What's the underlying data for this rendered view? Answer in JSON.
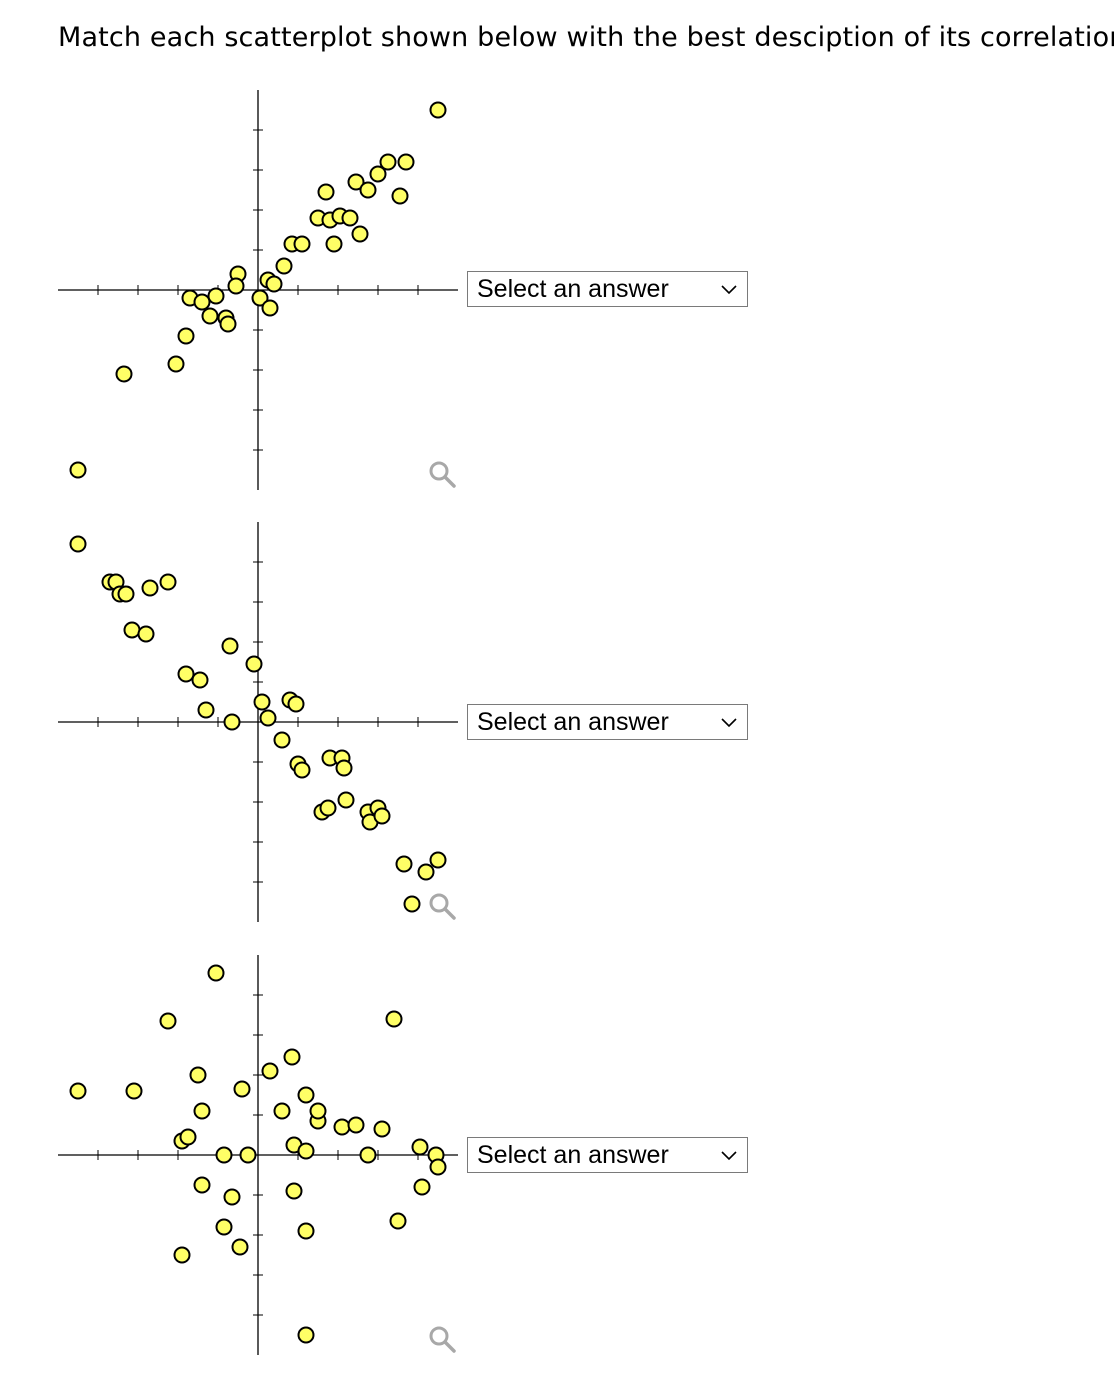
{
  "question": {
    "text": "Match each scatterplot shown below with the best desciption of its correlation."
  },
  "answer_select": {
    "placeholder": "Select an answer"
  },
  "icons": {
    "zoom": "magnifier-icon",
    "dropdown": "chevron-down-icon"
  },
  "colors": {
    "point_fill": "#ffff66",
    "point_stroke": "#000000",
    "axis": "#000000",
    "zoom_icon": "#a8a8a8"
  },
  "chart_data": [
    {
      "type": "scatter",
      "title": "",
      "xlabel": "",
      "ylabel": "",
      "xlim": [
        -10,
        10
      ],
      "ylim": [
        -10,
        10
      ],
      "grid": false,
      "axes_through_origin": true,
      "ticks_every": 2,
      "points": [
        [
          -9.0,
          -9.0
        ],
        [
          -6.7,
          -4.2
        ],
        [
          -4.1,
          -3.7
        ],
        [
          -3.6,
          -2.3
        ],
        [
          -3.4,
          -0.4
        ],
        [
          -2.8,
          -0.6
        ],
        [
          -2.4,
          -1.3
        ],
        [
          -2.1,
          -0.3
        ],
        [
          -1.6,
          -1.4
        ],
        [
          -1.5,
          -1.7
        ],
        [
          -1.0,
          0.8
        ],
        [
          -1.1,
          0.2
        ],
        [
          0.1,
          -0.4
        ],
        [
          0.6,
          -0.9
        ],
        [
          0.5,
          0.5
        ],
        [
          0.8,
          0.3
        ],
        [
          1.3,
          1.2
        ],
        [
          1.7,
          2.3
        ],
        [
          2.2,
          2.3
        ],
        [
          3.0,
          3.6
        ],
        [
          3.4,
          4.9
        ],
        [
          3.6,
          3.5
        ],
        [
          3.8,
          2.3
        ],
        [
          4.1,
          3.7
        ],
        [
          4.6,
          3.6
        ],
        [
          5.1,
          2.8
        ],
        [
          4.9,
          5.4
        ],
        [
          5.5,
          5.0
        ],
        [
          6.0,
          5.8
        ],
        [
          6.5,
          6.4
        ],
        [
          7.1,
          4.7
        ],
        [
          7.4,
          6.4
        ],
        [
          9.0,
          9.0
        ]
      ]
    },
    {
      "type": "scatter",
      "title": "",
      "xlabel": "",
      "ylabel": "",
      "xlim": [
        -10,
        10
      ],
      "ylim": [
        -10,
        10
      ],
      "grid": false,
      "axes_through_origin": true,
      "ticks_every": 2,
      "points": [
        [
          -9.0,
          8.9
        ],
        [
          -7.4,
          7.0
        ],
        [
          -7.1,
          7.0
        ],
        [
          -6.9,
          6.4
        ],
        [
          -6.6,
          6.4
        ],
        [
          -6.3,
          4.6
        ],
        [
          -5.6,
          4.4
        ],
        [
          -5.4,
          6.7
        ],
        [
          -4.5,
          7.0
        ],
        [
          -3.6,
          2.4
        ],
        [
          -2.9,
          2.1
        ],
        [
          -2.6,
          0.6
        ],
        [
          -1.4,
          3.8
        ],
        [
          -1.3,
          0.0
        ],
        [
          -0.2,
          2.9
        ],
        [
          0.2,
          1.0
        ],
        [
          0.5,
          0.2
        ],
        [
          1.2,
          -0.9
        ],
        [
          1.6,
          1.1
        ],
        [
          1.9,
          0.9
        ],
        [
          2.0,
          -2.1
        ],
        [
          2.2,
          -2.4
        ],
        [
          3.2,
          -4.5
        ],
        [
          3.5,
          -4.3
        ],
        [
          3.6,
          -1.8
        ],
        [
          4.2,
          -1.8
        ],
        [
          4.3,
          -2.3
        ],
        [
          4.4,
          -3.9
        ],
        [
          5.5,
          -4.5
        ],
        [
          5.6,
          -5.0
        ],
        [
          6.0,
          -4.3
        ],
        [
          6.2,
          -4.7
        ],
        [
          7.3,
          -7.1
        ],
        [
          7.7,
          -9.1
        ],
        [
          8.4,
          -7.5
        ],
        [
          9.0,
          -6.9
        ]
      ]
    },
    {
      "type": "scatter",
      "title": "",
      "xlabel": "",
      "ylabel": "",
      "xlim": [
        -10,
        10
      ],
      "ylim": [
        -10,
        10
      ],
      "grid": false,
      "axes_through_origin": true,
      "ticks_every": 2,
      "points": [
        [
          -9.0,
          3.2
        ],
        [
          -6.2,
          3.2
        ],
        [
          -4.5,
          6.7
        ],
        [
          -3.8,
          -5.0
        ],
        [
          -3.8,
          0.7
        ],
        [
          -3.5,
          0.9
        ],
        [
          -3.0,
          4.0
        ],
        [
          -2.8,
          2.2
        ],
        [
          -2.8,
          -1.5
        ],
        [
          -2.1,
          9.1
        ],
        [
          -1.7,
          0.0
        ],
        [
          -1.7,
          -3.6
        ],
        [
          -1.3,
          -2.1
        ],
        [
          -0.9,
          -4.6
        ],
        [
          -0.8,
          3.3
        ],
        [
          -0.5,
          0.0
        ],
        [
          0.6,
          4.2
        ],
        [
          1.2,
          2.2
        ],
        [
          1.7,
          4.9
        ],
        [
          1.8,
          -1.8
        ],
        [
          1.8,
          0.5
        ],
        [
          2.4,
          0.2
        ],
        [
          2.4,
          -3.8
        ],
        [
          2.4,
          3.0
        ],
        [
          3.0,
          1.7
        ],
        [
          3.0,
          2.2
        ],
        [
          4.2,
          1.4
        ],
        [
          4.9,
          1.5
        ],
        [
          5.5,
          0.0
        ],
        [
          6.2,
          1.3
        ],
        [
          6.8,
          6.8
        ],
        [
          7.0,
          -3.3
        ],
        [
          8.1,
          0.4
        ],
        [
          8.2,
          -1.6
        ],
        [
          8.9,
          0.0
        ],
        [
          9.0,
          -0.6
        ],
        [
          2.4,
          -9.0
        ]
      ]
    }
  ]
}
